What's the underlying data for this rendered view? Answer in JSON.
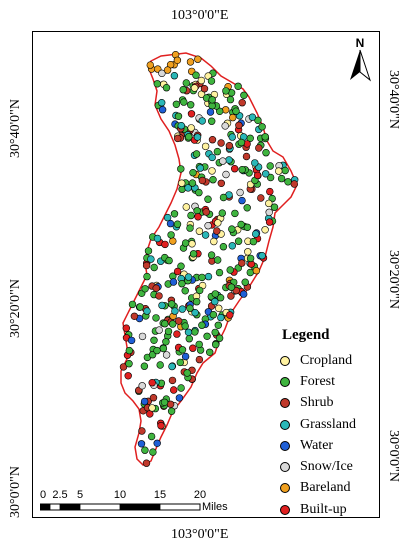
{
  "graticule": {
    "top_lon": "103°0'0\"E",
    "bottom_lon": "103°0'0\"E",
    "left_lats": [
      "30°40'0\"N",
      "30°20'0\"N",
      "30°0'0\"N"
    ],
    "right_lats": [
      "30°40'0\"N",
      "30°20'0\"N",
      "30°0'0\"N"
    ]
  },
  "north_arrow": {
    "label": "N",
    "icon": "north-arrow-icon"
  },
  "legend": {
    "title": "Legend",
    "items": [
      {
        "label": "Cropland",
        "color": "#fff2a0"
      },
      {
        "label": "Forest",
        "color": "#3fb43f"
      },
      {
        "label": "Shrub",
        "color": "#c0392b"
      },
      {
        "label": "Grassland",
        "color": "#2ab7b7"
      },
      {
        "label": "Water",
        "color": "#1f5fd6"
      },
      {
        "label": "Snow/Ice",
        "color": "#d9d9d9"
      },
      {
        "label": "Bareland",
        "color": "#f0a020"
      },
      {
        "label": "Built-up",
        "color": "#e02020"
      }
    ]
  },
  "scale_bar": {
    "ticks": [
      "0",
      "2.5",
      "5",
      "10",
      "15",
      "20"
    ],
    "units": "Miles"
  }
}
